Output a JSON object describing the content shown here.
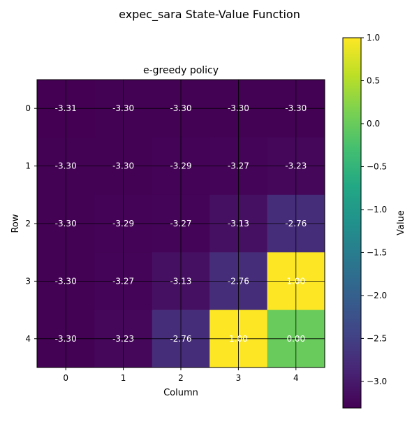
{
  "figure": {
    "suptitle": "expec_sara State-Value Function"
  },
  "chart_data": {
    "type": "heatmap",
    "title": "e-greedy policy",
    "xlabel": "Column",
    "ylabel": "Row",
    "x_ticks": [
      "0",
      "1",
      "2",
      "3",
      "4"
    ],
    "y_ticks": [
      "0",
      "1",
      "2",
      "3",
      "4"
    ],
    "values": [
      [
        -3.31,
        -3.3,
        -3.3,
        -3.3,
        -3.3
      ],
      [
        -3.3,
        -3.3,
        -3.29,
        -3.27,
        -3.23
      ],
      [
        -3.3,
        -3.29,
        -3.27,
        -3.13,
        -2.76
      ],
      [
        -3.3,
        -3.27,
        -3.13,
        -2.76,
        1.0
      ],
      [
        -3.3,
        -3.23,
        -2.76,
        1.0,
        0.0
      ]
    ],
    "labels": [
      [
        "-3.31",
        "-3.30",
        "-3.30",
        "-3.30",
        "-3.30"
      ],
      [
        "-3.30",
        "-3.30",
        "-3.29",
        "-3.27",
        "-3.23"
      ],
      [
        "-3.30",
        "-3.29",
        "-3.27",
        "-3.13",
        "-2.76"
      ],
      [
        "-3.30",
        "-3.27",
        "-3.13",
        "-2.76",
        "1.00"
      ],
      [
        "-3.30",
        "-3.23",
        "-2.76",
        "1.00",
        "0.00"
      ]
    ],
    "colormap": "viridis",
    "vmin": -3.31,
    "vmax": 1.0,
    "grid": true,
    "colorbar": {
      "label": "Value",
      "ticks": [
        1.0,
        0.5,
        0.0,
        -0.5,
        -1.0,
        -1.5,
        -2.0,
        -2.5,
        -3.0
      ],
      "tick_labels": [
        "1.0",
        "0.5",
        "0.0",
        "−0.5",
        "−1.0",
        "−1.5",
        "−2.0",
        "−2.5",
        "−3.0"
      ]
    },
    "annotation_color": "#ffffff"
  }
}
